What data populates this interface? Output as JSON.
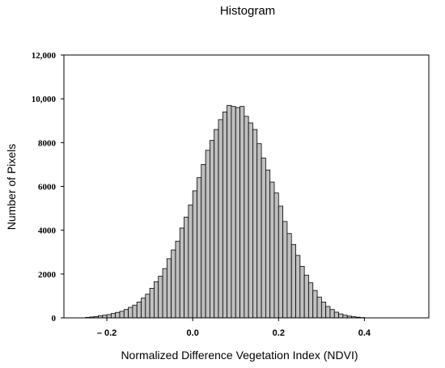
{
  "chart_data": {
    "type": "bar",
    "title": "Histogram",
    "xlabel": "Normalized Difference Vegetation Index (NDVI)",
    "ylabel": "Number of Pixels",
    "xlim": [
      -0.3,
      0.55
    ],
    "ylim": [
      0,
      12000
    ],
    "xticks": [
      {
        "value": -0.2,
        "label": "– 0.2"
      },
      {
        "value": 0.0,
        "label": "0.0"
      },
      {
        "value": 0.2,
        "label": "0.2"
      },
      {
        "value": 0.4,
        "label": "0.4"
      }
    ],
    "yticks": [
      {
        "value": 0,
        "label": "0"
      },
      {
        "value": 2000,
        "label": "2000"
      },
      {
        "value": 4000,
        "label": "4000"
      },
      {
        "value": 6000,
        "label": "6000"
      },
      {
        "value": 8000,
        "label": "8000"
      },
      {
        "value": 10000,
        "label": "10,000"
      },
      {
        "value": 12000,
        "label": "12,000"
      }
    ],
    "bin_width": 0.01,
    "bins": [
      {
        "x": -0.25,
        "count": 20
      },
      {
        "x": -0.24,
        "count": 40
      },
      {
        "x": -0.23,
        "count": 60
      },
      {
        "x": -0.22,
        "count": 100
      },
      {
        "x": -0.21,
        "count": 120
      },
      {
        "x": -0.2,
        "count": 150
      },
      {
        "x": -0.19,
        "count": 200
      },
      {
        "x": -0.18,
        "count": 250
      },
      {
        "x": -0.17,
        "count": 300
      },
      {
        "x": -0.16,
        "count": 380
      },
      {
        "x": -0.15,
        "count": 480
      },
      {
        "x": -0.14,
        "count": 580
      },
      {
        "x": -0.13,
        "count": 720
      },
      {
        "x": -0.12,
        "count": 900
      },
      {
        "x": -0.11,
        "count": 1080
      },
      {
        "x": -0.1,
        "count": 1350
      },
      {
        "x": -0.09,
        "count": 1650
      },
      {
        "x": -0.08,
        "count": 1900
      },
      {
        "x": -0.07,
        "count": 2250
      },
      {
        "x": -0.06,
        "count": 2700
      },
      {
        "x": -0.05,
        "count": 3100
      },
      {
        "x": -0.04,
        "count": 3500
      },
      {
        "x": -0.03,
        "count": 4100
      },
      {
        "x": -0.02,
        "count": 4600
      },
      {
        "x": -0.01,
        "count": 5150
      },
      {
        "x": 0.0,
        "count": 5800
      },
      {
        "x": 0.01,
        "count": 6400
      },
      {
        "x": 0.02,
        "count": 7000
      },
      {
        "x": 0.03,
        "count": 7650
      },
      {
        "x": 0.04,
        "count": 8100
      },
      {
        "x": 0.05,
        "count": 8600
      },
      {
        "x": 0.06,
        "count": 9050
      },
      {
        "x": 0.07,
        "count": 9400
      },
      {
        "x": 0.08,
        "count": 9700
      },
      {
        "x": 0.09,
        "count": 9650
      },
      {
        "x": 0.1,
        "count": 9600
      },
      {
        "x": 0.11,
        "count": 9650
      },
      {
        "x": 0.12,
        "count": 9200
      },
      {
        "x": 0.13,
        "count": 8900
      },
      {
        "x": 0.14,
        "count": 8600
      },
      {
        "x": 0.15,
        "count": 7950
      },
      {
        "x": 0.16,
        "count": 7300
      },
      {
        "x": 0.17,
        "count": 6750
      },
      {
        "x": 0.18,
        "count": 6200
      },
      {
        "x": 0.19,
        "count": 5700
      },
      {
        "x": 0.2,
        "count": 5100
      },
      {
        "x": 0.21,
        "count": 4400
      },
      {
        "x": 0.22,
        "count": 3850
      },
      {
        "x": 0.23,
        "count": 3350
      },
      {
        "x": 0.24,
        "count": 2850
      },
      {
        "x": 0.25,
        "count": 2350
      },
      {
        "x": 0.26,
        "count": 1950
      },
      {
        "x": 0.27,
        "count": 1600
      },
      {
        "x": 0.28,
        "count": 1250
      },
      {
        "x": 0.29,
        "count": 950
      },
      {
        "x": 0.3,
        "count": 720
      },
      {
        "x": 0.31,
        "count": 520
      },
      {
        "x": 0.32,
        "count": 380
      },
      {
        "x": 0.33,
        "count": 260
      },
      {
        "x": 0.34,
        "count": 180
      },
      {
        "x": 0.35,
        "count": 120
      },
      {
        "x": 0.36,
        "count": 80
      },
      {
        "x": 0.37,
        "count": 50
      },
      {
        "x": 0.38,
        "count": 30
      },
      {
        "x": 0.39,
        "count": 15
      }
    ],
    "bar_color": "#c0c0c0",
    "grid": false,
    "legend": "none"
  }
}
